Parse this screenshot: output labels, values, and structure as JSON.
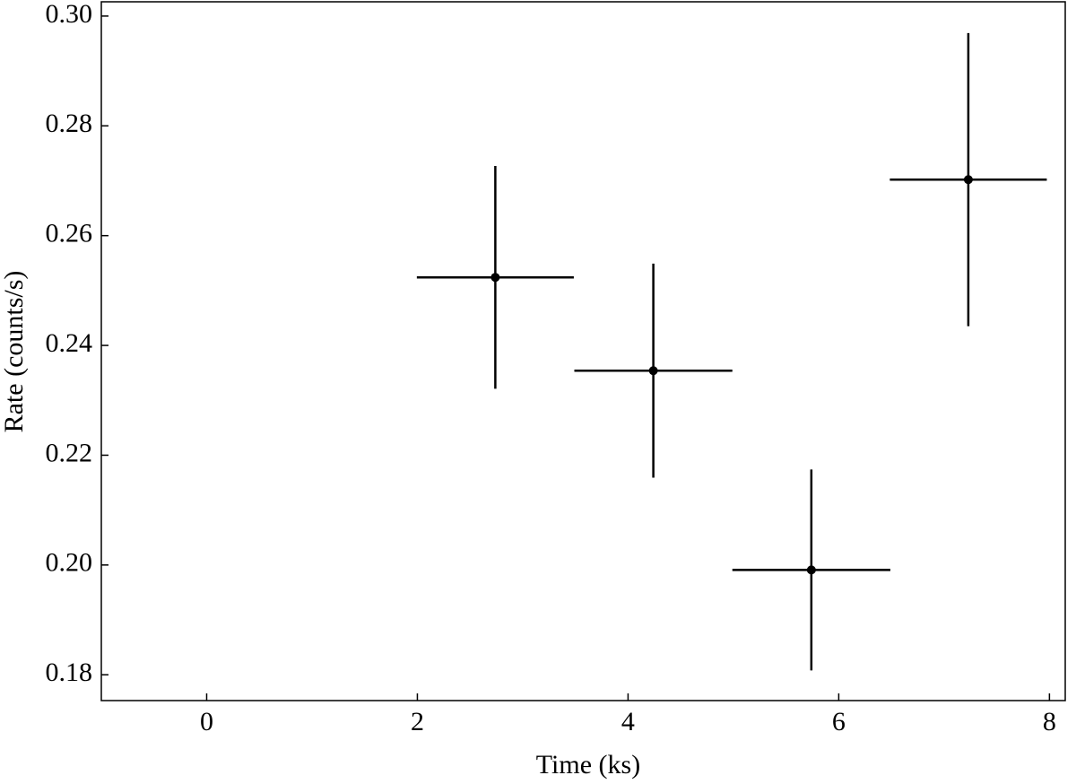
{
  "chart_data": {
    "type": "errorbar",
    "x_label": "Time (ks)",
    "y_label": "Rate (counts/s)",
    "x": [
      2.74,
      4.24,
      5.74,
      7.23
    ],
    "xerr": [
      0.745,
      0.75,
      0.75,
      0.745
    ],
    "values": [
      0.2524,
      0.2354,
      0.1991,
      0.2702
    ],
    "yerr": [
      0.0203,
      0.0195,
      0.0183,
      0.0267
    ],
    "color": "#000000",
    "xlim": [
      -1.0,
      8.15
    ],
    "ylim": [
      0.1753,
      0.3026
    ],
    "xticks": [
      0,
      2,
      4,
      6,
      8
    ],
    "yticks": [
      0.18,
      {
        "value": 0.2,
        "label": "0.20"
      },
      0.22,
      0.24,
      0.26,
      0.28,
      {
        "value": 0.3,
        "label": "0.30"
      }
    ],
    "grid": false
  }
}
